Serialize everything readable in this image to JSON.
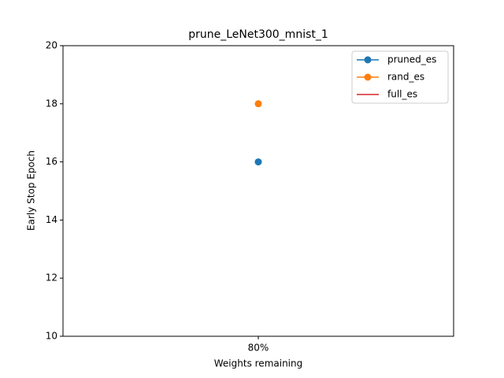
{
  "chart_data": {
    "type": "line",
    "title": "prune_LeNet300_mnist_1",
    "xlabel": "Weights remaining",
    "ylabel": "Early Stop Epoch",
    "categories": [
      "80%"
    ],
    "series": [
      {
        "name": "pruned_es",
        "color": "#1f77b4",
        "marker": true,
        "values": [
          16
        ]
      },
      {
        "name": "rand_es",
        "color": "#ff7f0e",
        "marker": true,
        "values": [
          18
        ]
      },
      {
        "name": "full_es",
        "color": "#d62728",
        "marker": false,
        "values": [
          null
        ]
      }
    ],
    "ylim": [
      10,
      20
    ],
    "yticks": [
      10,
      12,
      14,
      16,
      18,
      20
    ],
    "grid": false,
    "legend": "upper right"
  }
}
